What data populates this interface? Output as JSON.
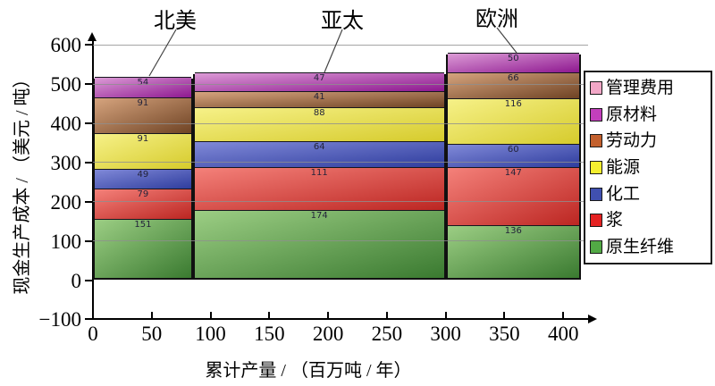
{
  "chart_data": {
    "type": "bar",
    "subtype": "variable-width stacked bars (regional cash-cost curve)",
    "xlabel": "累计产量 / （百万吨 / 年）",
    "ylabel": "现金生产成本 / （美元 / 吨）",
    "xlim": [
      0,
      420
    ],
    "ylim": [
      -100,
      600
    ],
    "xticks": [
      0,
      50,
      100,
      150,
      200,
      250,
      300,
      350,
      400
    ],
    "yticks": [
      600,
      500,
      400,
      300,
      200,
      100,
      0,
      -100
    ],
    "grid": "horizontal gray gridlines every 100 units, drawn over bars",
    "legend_position": "right",
    "legend": [
      {
        "label": "管理费用",
        "color": "#F2A7C7"
      },
      {
        "label": "原材料",
        "color": "#C33FBC"
      },
      {
        "label": "劳动力",
        "color": "#C3602D"
      },
      {
        "label": "能源",
        "color": "#F4EE2F"
      },
      {
        "label": "化工",
        "color": "#4050B0"
      },
      {
        "label": "浆",
        "color": "#E42222"
      },
      {
        "label": "原生纤维",
        "color": "#52A945"
      }
    ],
    "stack_order_bottom_to_top": [
      "原生纤维",
      "浆",
      "化工",
      "能源",
      "劳动力",
      "原材料"
    ],
    "category_gradients": {
      "原生纤维": {
        "light": "#9CCE84",
        "dark": "#3A7A30"
      },
      "浆": {
        "light": "#F4817A",
        "dark": "#BC2622"
      },
      "化工": {
        "light": "#8089D8",
        "dark": "#2F3D9E"
      },
      "能源": {
        "light": "#F6F188",
        "dark": "#D6CB2C"
      },
      "劳动力": {
        "light": "#D6A47E",
        "dark": "#6F4324"
      },
      "原材料": {
        "light": "#DC9BD6",
        "dark": "#8E1890"
      }
    },
    "regions": [
      {
        "label": "北美",
        "x_start": 0,
        "x_end": 85,
        "total": 515,
        "segments": [
          {
            "category": "原生纤维",
            "value": 151
          },
          {
            "category": "浆",
            "value": 79
          },
          {
            "category": "化工",
            "value": 49
          },
          {
            "category": "能源",
            "value": 91
          },
          {
            "category": "劳动力",
            "value": 91
          },
          {
            "category": "原材料",
            "value": 54
          }
        ]
      },
      {
        "label": "亚太",
        "x_start": 85,
        "x_end": 300,
        "total": 525,
        "segments": [
          {
            "category": "原生纤维",
            "value": 174
          },
          {
            "category": "浆",
            "value": 111
          },
          {
            "category": "化工",
            "value": 64
          },
          {
            "category": "能源",
            "value": 88
          },
          {
            "category": "劳动力",
            "value": 41
          },
          {
            "category": "原材料",
            "value": 47
          }
        ]
      },
      {
        "label": "欧洲",
        "x_start": 300,
        "x_end": 415,
        "total": 575,
        "segments": [
          {
            "category": "原生纤维",
            "value": 136
          },
          {
            "category": "浆",
            "value": 147
          },
          {
            "category": "化工",
            "value": 60
          },
          {
            "category": "能源",
            "value": 116
          },
          {
            "category": "劳动力",
            "value": 66
          },
          {
            "category": "原材料",
            "value": 50
          }
        ]
      }
    ]
  }
}
